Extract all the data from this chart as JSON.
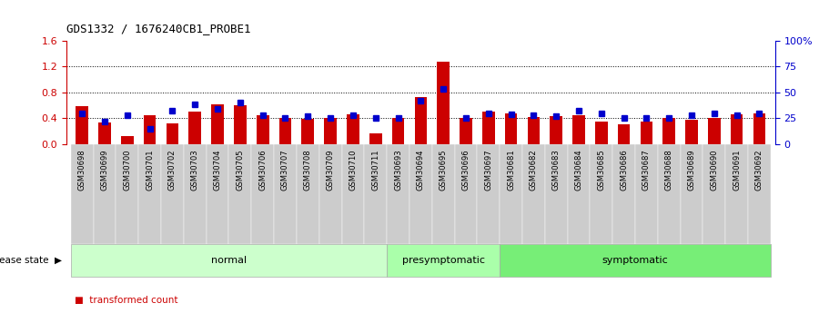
{
  "title": "GDS1332 / 1676240CB1_PROBE1",
  "samples": [
    "GSM30698",
    "GSM30699",
    "GSM30700",
    "GSM30701",
    "GSM30702",
    "GSM30703",
    "GSM30704",
    "GSM30705",
    "GSM30706",
    "GSM30707",
    "GSM30708",
    "GSM30709",
    "GSM30710",
    "GSM30711",
    "GSM30693",
    "GSM30694",
    "GSM30695",
    "GSM30696",
    "GSM30697",
    "GSM30681",
    "GSM30682",
    "GSM30683",
    "GSM30684",
    "GSM30685",
    "GSM30686",
    "GSM30687",
    "GSM30688",
    "GSM30689",
    "GSM30690",
    "GSM30691",
    "GSM30692"
  ],
  "transformed_count": [
    0.58,
    0.33,
    0.12,
    0.44,
    0.32,
    0.5,
    0.62,
    0.6,
    0.45,
    0.41,
    0.39,
    0.4,
    0.46,
    0.17,
    0.4,
    0.73,
    1.28,
    0.41,
    0.5,
    0.47,
    0.42,
    0.43,
    0.45,
    0.35,
    0.3,
    0.35,
    0.41,
    0.38,
    0.4,
    0.46,
    0.47
  ],
  "percentile_rank": [
    30,
    22,
    28,
    15,
    32,
    38,
    34,
    40,
    28,
    25,
    27,
    25,
    28,
    25,
    25,
    42,
    53,
    25,
    30,
    29,
    28,
    27,
    32,
    30,
    25,
    25,
    25,
    28,
    30,
    28,
    30
  ],
  "groups": [
    {
      "label": "normal",
      "start": 0,
      "end": 14,
      "color": "#ccffcc"
    },
    {
      "label": "presymptomatic",
      "start": 14,
      "end": 19,
      "color": "#aaffaa"
    },
    {
      "label": "symptomatic",
      "start": 19,
      "end": 31,
      "color": "#77ee77"
    }
  ],
  "ylim_left": [
    0,
    1.6
  ],
  "ylim_right": [
    0,
    100
  ],
  "yticks_left": [
    0.0,
    0.4,
    0.8,
    1.2,
    1.6
  ],
  "yticks_right": [
    0,
    25,
    50,
    75,
    100
  ],
  "bar_color": "#cc0000",
  "dot_color": "#0000cc",
  "background_color": "#ffffff",
  "xlabel_color": "#cc0000",
  "ylabel_right_color": "#0000cc",
  "tick_bg_color": "#cccccc",
  "disease_state_label": "disease state"
}
